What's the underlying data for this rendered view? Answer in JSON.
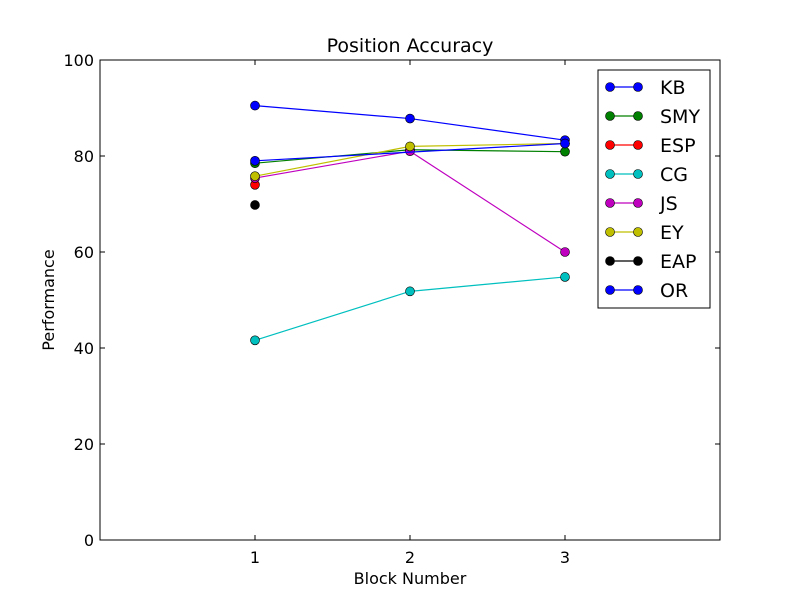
{
  "chart_data": {
    "type": "line",
    "title": "Position Accuracy",
    "xlabel": "Block Number",
    "ylabel": "Performance",
    "xlim": [
      0,
      4
    ],
    "ylim": [
      0,
      100
    ],
    "xticks": [
      1,
      2,
      3
    ],
    "yticks": [
      0,
      20,
      40,
      60,
      80,
      100
    ],
    "grid": false,
    "legend_position": "top-right",
    "series": [
      {
        "name": "KB",
        "color": "#0000ff",
        "x": [
          1,
          2,
          3
        ],
        "y": [
          90.5,
          87.8,
          83.3
        ]
      },
      {
        "name": "SMY",
        "color": "#008000",
        "x": [
          1,
          2,
          3
        ],
        "y": [
          78.5,
          81.3,
          80.9
        ]
      },
      {
        "name": "ESP",
        "color": "#ff0000",
        "x": [
          1
        ],
        "y": [
          74.0
        ]
      },
      {
        "name": "CG",
        "color": "#00bfbf",
        "x": [
          1,
          2,
          3
        ],
        "y": [
          41.6,
          51.8,
          54.8
        ]
      },
      {
        "name": "JS",
        "color": "#bf00bf",
        "x": [
          1,
          2,
          3
        ],
        "y": [
          75.4,
          81.0,
          60.0
        ]
      },
      {
        "name": "EY",
        "color": "#bfbf00",
        "x": [
          1,
          2,
          3
        ],
        "y": [
          75.8,
          82.0,
          82.6
        ]
      },
      {
        "name": "EAP",
        "color": "#000000",
        "x": [
          1
        ],
        "y": [
          69.8
        ]
      },
      {
        "name": "OR",
        "color": "#0000ff",
        "x": [
          1,
          3
        ],
        "y": [
          79.0,
          82.6
        ]
      }
    ]
  }
}
